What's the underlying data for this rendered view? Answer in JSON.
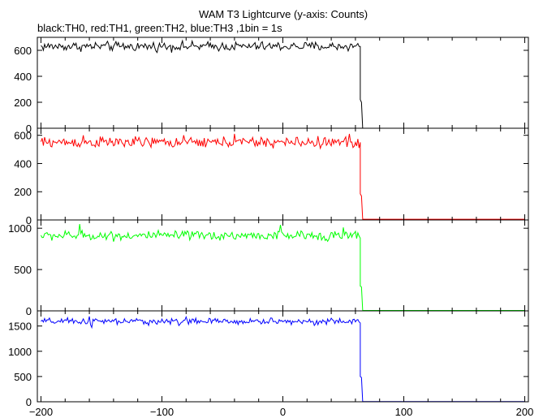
{
  "chart_data": {
    "type": "line",
    "title": "WAM T3 Lightcurve (y-axis: Counts)",
    "subtitle": "black:TH0, red:TH1, green:TH2, blue:TH3 ,1bin = 1s",
    "xlim": [
      -203,
      203
    ],
    "x_ticks": [
      -200,
      -100,
      0,
      100,
      200
    ],
    "x_tick_labels": [
      "−200",
      "−100",
      "0",
      "100",
      "200"
    ],
    "grid": false,
    "trigger_drop_x": 64,
    "panels": [
      {
        "name": "TH0",
        "color": "#000000",
        "ylim": [
          0,
          700
        ],
        "y_ticks": [
          0,
          200,
          400,
          600
        ],
        "y_tick_labels": [
          "0",
          "200",
          "400",
          "600"
        ],
        "level_before": 630,
        "noise": 22,
        "spikes": [],
        "transition": [
          [
            64,
            630
          ],
          [
            64,
            220
          ],
          [
            65,
            200
          ],
          [
            66,
            0
          ]
        ],
        "level_after": 0
      },
      {
        "name": "TH1",
        "color": "#ff0000",
        "ylim": [
          0,
          650
        ],
        "y_ticks": [
          0,
          200,
          400,
          600
        ],
        "y_tick_labels": [
          "0",
          "200",
          "400",
          "600"
        ],
        "level_before": 550,
        "noise": 24,
        "spikes": [
          [
            -165,
            600
          ],
          [
            -40,
            610
          ],
          [
            55,
            610
          ]
        ],
        "transition": [
          [
            64,
            550
          ],
          [
            64,
            185
          ],
          [
            65,
            170
          ],
          [
            66,
            5
          ]
        ],
        "level_after": 5
      },
      {
        "name": "TH2",
        "color": "#00ff00",
        "ylim": [
          0,
          1100
        ],
        "y_ticks": [
          0,
          500,
          1000
        ],
        "y_tick_labels": [
          "0",
          "500",
          "1000"
        ],
        "level_before": 910,
        "noise": 35,
        "spikes": [
          [
            -168,
            1050
          ],
          [
            -2,
            1040
          ],
          [
            50,
            1010
          ]
        ],
        "transition": [
          [
            64,
            880
          ],
          [
            64,
            300
          ],
          [
            65,
            290
          ],
          [
            66,
            5
          ]
        ],
        "level_after": 5
      },
      {
        "name": "TH3",
        "color": "#0000ff",
        "ylim": [
          0,
          1800
        ],
        "y_ticks": [
          0,
          500,
          1000,
          1500
        ],
        "y_tick_labels": [
          "0",
          "500",
          "1000",
          "1500"
        ],
        "level_before": 1590,
        "noise": 40,
        "spikes": [
          [
            -160,
            1690
          ],
          [
            -158,
            1470
          ],
          [
            -80,
            1680
          ],
          [
            -10,
            1660
          ]
        ],
        "transition": [
          [
            64,
            1560
          ],
          [
            64,
            500
          ],
          [
            65,
            480
          ],
          [
            66,
            5
          ]
        ],
        "level_after": 5
      }
    ]
  }
}
